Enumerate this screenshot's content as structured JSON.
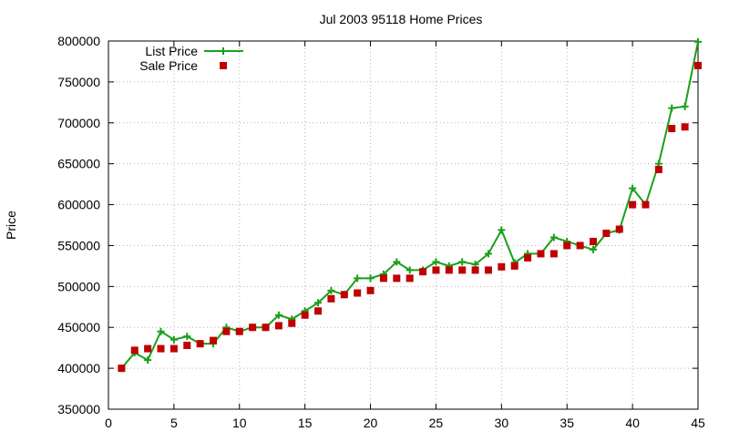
{
  "chart_data": {
    "type": "line",
    "title": "Jul 2003 95118 Home Prices",
    "xlabel": "",
    "ylabel": "Price",
    "xlim": [
      0,
      45
    ],
    "ylim": [
      350000,
      800000
    ],
    "x_ticks": [
      0,
      5,
      10,
      15,
      20,
      25,
      30,
      35,
      40,
      45
    ],
    "y_ticks": [
      350000,
      400000,
      450000,
      500000,
      550000,
      600000,
      650000,
      700000,
      750000,
      800000
    ],
    "grid": true,
    "legend_position": "top-left",
    "series": [
      {
        "name": "List Price",
        "style": "lines+markers",
        "marker": "plus",
        "color": "#1aa01a",
        "x": [
          1,
          2,
          3,
          4,
          5,
          6,
          7,
          8,
          9,
          10,
          11,
          12,
          13,
          14,
          15,
          16,
          17,
          18,
          19,
          20,
          21,
          22,
          23,
          24,
          25,
          26,
          27,
          28,
          29,
          30,
          31,
          32,
          33,
          34,
          35,
          36,
          37,
          38,
          39,
          40,
          41,
          42,
          43,
          44,
          45
        ],
        "values": [
          400000,
          419000,
          410000,
          445000,
          435000,
          439000,
          430000,
          430000,
          450000,
          445000,
          450000,
          450000,
          465000,
          460000,
          470000,
          480000,
          495000,
          490000,
          510000,
          510000,
          515000,
          530000,
          520000,
          520000,
          530000,
          525000,
          530000,
          527000,
          540000,
          569000,
          529000,
          540000,
          540000,
          560000,
          555000,
          550000,
          545000,
          565000,
          569000,
          620000,
          600000,
          650000,
          718000,
          720000,
          799000
        ]
      },
      {
        "name": "Sale Price",
        "style": "markers",
        "marker": "square",
        "color": "#c00000",
        "x": [
          1,
          2,
          3,
          4,
          5,
          6,
          7,
          8,
          9,
          10,
          11,
          12,
          13,
          14,
          15,
          16,
          17,
          18,
          19,
          20,
          21,
          22,
          23,
          24,
          25,
          26,
          27,
          28,
          29,
          30,
          31,
          32,
          33,
          34,
          35,
          36,
          37,
          38,
          39,
          40,
          41,
          42,
          43,
          44,
          45
        ],
        "values": [
          400000,
          422000,
          424000,
          424000,
          424000,
          428000,
          430000,
          434000,
          445000,
          445000,
          450000,
          450000,
          452000,
          455000,
          465000,
          470000,
          485000,
          490000,
          492000,
          495000,
          510000,
          510000,
          510000,
          518000,
          520000,
          520000,
          520000,
          520000,
          520000,
          524000,
          525000,
          535000,
          540000,
          540000,
          550000,
          550000,
          555000,
          565000,
          570000,
          600000,
          600000,
          643000,
          693000,
          695000,
          770000
        ]
      }
    ]
  }
}
